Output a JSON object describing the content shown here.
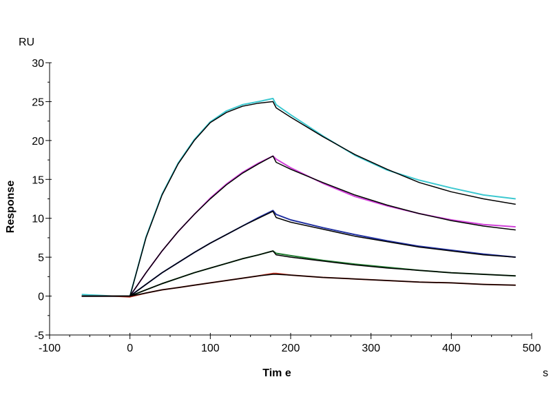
{
  "chart_data": {
    "type": "line",
    "title": "",
    "xlabel": "Tim e",
    "xunit": "s",
    "ylabel": "Response",
    "yunit": "RU",
    "xlim": [
      -100,
      500
    ],
    "ylim": [
      -5,
      30
    ],
    "xticks": [
      -100,
      0,
      100,
      200,
      300,
      400,
      500
    ],
    "yticks": [
      -5,
      0,
      5,
      10,
      15,
      20,
      25,
      30
    ],
    "grid": false,
    "legend": "none",
    "fit_color": "#000000",
    "x": [
      -60,
      -40,
      -20,
      0,
      20,
      40,
      60,
      80,
      100,
      120,
      140,
      160,
      178,
      182,
      200,
      240,
      280,
      320,
      360,
      400,
      440,
      480
    ],
    "series": [
      {
        "color": "#3cc8d0",
        "data": [
          0.2,
          0.1,
          0,
          0,
          7.6,
          13.1,
          17.1,
          20.1,
          22.4,
          23.8,
          24.6,
          25.0,
          25.4,
          24.6,
          23.3,
          20.6,
          18.1,
          16.2,
          14.9,
          13.9,
          13.0,
          12.5
        ],
        "fit": [
          0,
          0,
          0,
          0,
          7.5,
          13.0,
          17.0,
          20.0,
          22.3,
          23.6,
          24.4,
          24.8,
          25.0,
          24.2,
          23.0,
          20.5,
          18.2,
          16.3,
          14.6,
          13.4,
          12.5,
          11.8
        ]
      },
      {
        "color": "#d040d8",
        "data": [
          0,
          0,
          0,
          0,
          3.0,
          5.8,
          8.3,
          10.5,
          12.6,
          14.4,
          15.9,
          17.1,
          18.0,
          17.6,
          16.5,
          14.5,
          12.8,
          11.6,
          10.6,
          9.8,
          9.2,
          8.9
        ],
        "fit": [
          0,
          0,
          0,
          0,
          3.0,
          5.8,
          8.3,
          10.5,
          12.5,
          14.3,
          15.8,
          17.0,
          18.0,
          17.2,
          16.3,
          14.6,
          13.0,
          11.7,
          10.6,
          9.7,
          9.0,
          8.5
        ]
      },
      {
        "color": "#2030a0",
        "data": [
          0,
          0,
          0,
          0,
          1.5,
          3.0,
          4.3,
          5.6,
          6.8,
          7.9,
          9.0,
          10.1,
          11.0,
          10.5,
          9.8,
          8.8,
          7.9,
          7.1,
          6.4,
          5.9,
          5.4,
          5.0
        ],
        "fit": [
          0,
          0,
          0,
          0,
          1.5,
          3.0,
          4.3,
          5.6,
          6.8,
          7.9,
          9.0,
          10.0,
          10.9,
          10.1,
          9.5,
          8.6,
          7.7,
          7.0,
          6.3,
          5.8,
          5.3,
          5.0
        ]
      },
      {
        "color": "#207a30",
        "data": [
          0,
          0,
          0,
          0,
          0.8,
          1.6,
          2.3,
          3.0,
          3.6,
          4.2,
          4.8,
          5.3,
          5.8,
          5.5,
          5.2,
          4.6,
          4.1,
          3.7,
          3.3,
          3.0,
          2.8,
          2.6
        ],
        "fit": [
          0,
          0,
          0,
          0,
          0.8,
          1.6,
          2.3,
          3.0,
          3.6,
          4.2,
          4.8,
          5.3,
          5.8,
          5.3,
          5.0,
          4.5,
          4.0,
          3.6,
          3.3,
          3.0,
          2.8,
          2.6
        ]
      },
      {
        "color": "#c03020",
        "data": [
          0,
          0,
          0,
          -0.1,
          0.4,
          0.8,
          1.1,
          1.4,
          1.7,
          2.0,
          2.3,
          2.6,
          2.9,
          2.9,
          2.7,
          2.4,
          2.2,
          2.0,
          1.8,
          1.7,
          1.5,
          1.4
        ],
        "fit": [
          0,
          0,
          0,
          0,
          0.4,
          0.8,
          1.1,
          1.4,
          1.7,
          2.0,
          2.3,
          2.6,
          2.8,
          2.8,
          2.7,
          2.4,
          2.2,
          2.0,
          1.8,
          1.7,
          1.5,
          1.4
        ]
      }
    ]
  }
}
